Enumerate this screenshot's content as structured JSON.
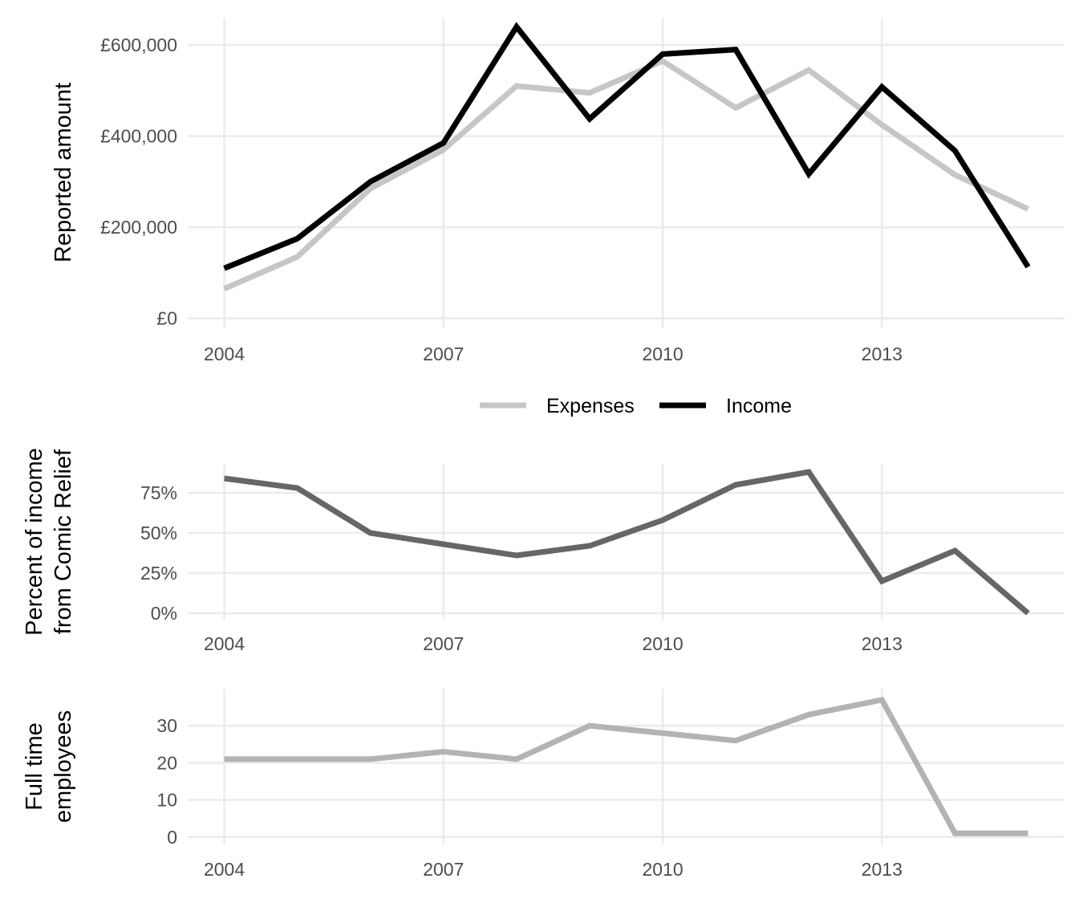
{
  "chart_data": [
    {
      "type": "line",
      "x": [
        2004,
        2005,
        2006,
        2007,
        2008,
        2009,
        2010,
        2011,
        2012,
        2013,
        2014,
        2015
      ],
      "series": [
        {
          "name": "Expenses",
          "color": "#c6c6c6",
          "values": [
            65000,
            135000,
            285000,
            370000,
            510000,
            495000,
            565000,
            462000,
            545000,
            425000,
            315000,
            240000
          ]
        },
        {
          "name": "Income",
          "color": "#000000",
          "values": [
            110000,
            175000,
            300000,
            385000,
            640000,
            438000,
            580000,
            590000,
            317000,
            508000,
            368000,
            113000
          ]
        }
      ],
      "ylabel": "Reported amount",
      "yticks": [
        0,
        200000,
        400000,
        600000
      ],
      "ytick_labels": [
        "£0",
        "£200,000",
        "£400,000",
        "£600,000"
      ],
      "xticks": [
        2004,
        2007,
        2010,
        2013
      ],
      "xtick_labels": [
        "2004",
        "2007",
        "2010",
        "2013"
      ],
      "xlim": [
        2003.5,
        2015.5
      ],
      "ylim": [
        -20000,
        660000
      ],
      "grid": true,
      "legend": "bottom"
    },
    {
      "type": "line",
      "x": [
        2004,
        2005,
        2006,
        2007,
        2008,
        2009,
        2010,
        2011,
        2012,
        2013,
        2014,
        2015
      ],
      "series": [
        {
          "color": "#666666",
          "values": [
            84,
            78,
            50,
            43,
            36,
            42,
            58,
            80,
            88,
            20,
            39,
            0
          ]
        }
      ],
      "ylabel_lines": [
        "Percent of income",
        "from Comic Relief"
      ],
      "yticks": [
        0,
        25,
        50,
        75
      ],
      "ytick_labels": [
        "0%",
        "25%",
        "50%",
        "75%"
      ],
      "xticks": [
        2004,
        2007,
        2010,
        2013
      ],
      "xtick_labels": [
        "2004",
        "2007",
        "2010",
        "2013"
      ],
      "xlim": [
        2003.5,
        2015.5
      ],
      "ylim": [
        -4,
        93
      ],
      "grid": true
    },
    {
      "type": "line",
      "x": [
        2004,
        2005,
        2006,
        2007,
        2008,
        2009,
        2010,
        2011,
        2012,
        2013,
        2014,
        2015
      ],
      "series": [
        {
          "color": "#b3b3b3",
          "values": [
            21,
            21,
            21,
            23,
            21,
            30,
            28,
            26,
            33,
            37,
            1,
            1
          ]
        }
      ],
      "ylabel_lines": [
        "Full time",
        "employees"
      ],
      "yticks": [
        0,
        10,
        20,
        30
      ],
      "ytick_labels": [
        "0",
        "10",
        "20",
        "30"
      ],
      "xticks": [
        2004,
        2007,
        2010,
        2013
      ],
      "xtick_labels": [
        "2004",
        "2007",
        "2010",
        "2013"
      ],
      "xlim": [
        2003.5,
        2015.5
      ],
      "ylim": [
        -2,
        40
      ],
      "grid": true
    }
  ]
}
